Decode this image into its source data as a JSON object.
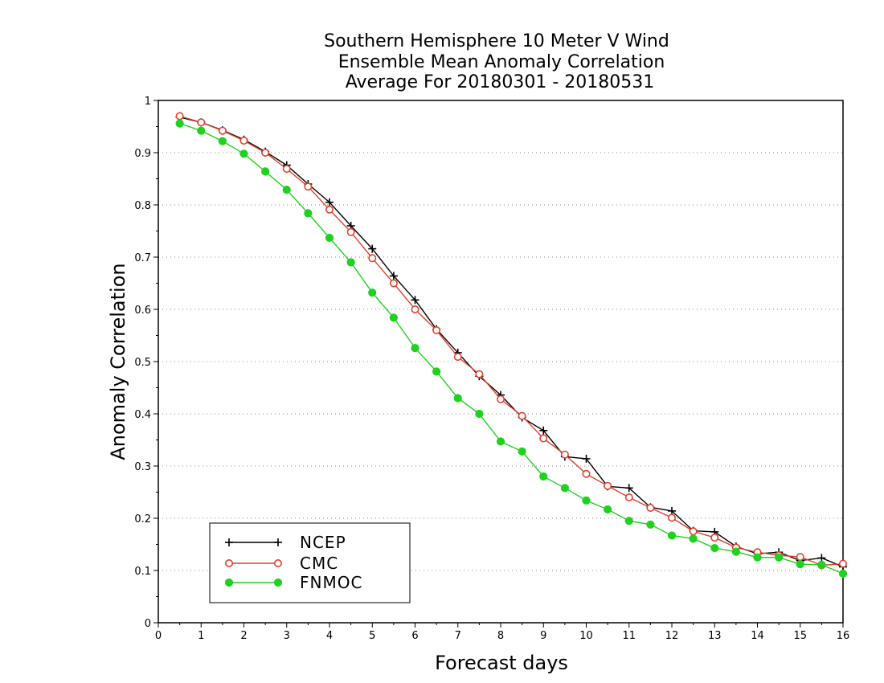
{
  "chart_data": {
    "type": "line",
    "title_lines": [
      "Southern Hemisphere 10 Meter V Wind",
      "Ensemble Mean Anomaly Correlation",
      "Average For 20180301 - 20180531"
    ],
    "xlabel": "Forecast days",
    "ylabel": "Anomaly Correlation",
    "xlim": [
      0,
      16
    ],
    "ylim": [
      0,
      1
    ],
    "x_ticks": [
      0,
      1,
      2,
      3,
      4,
      5,
      6,
      7,
      8,
      9,
      10,
      11,
      12,
      13,
      14,
      15,
      16
    ],
    "y_ticks": [
      0,
      0.1,
      0.2,
      0.3,
      0.4,
      0.5,
      0.6,
      0.7,
      0.8,
      0.9,
      1
    ],
    "y_tick_labels": [
      "0",
      "0.1",
      "0.2",
      "0.3",
      "0.4",
      "0.5",
      "0.6",
      "0.7",
      "0.8",
      "0.9",
      "1"
    ],
    "grid": "horizontal-dotted",
    "legend_position": "bottom-left",
    "x": [
      0.5,
      1,
      1.5,
      2,
      2.5,
      3,
      3.5,
      4,
      4.5,
      5,
      5.5,
      6,
      6.5,
      7,
      7.5,
      8,
      8.5,
      9,
      9.5,
      10,
      10.5,
      11,
      11.5,
      12,
      12.5,
      13,
      13.5,
      14,
      14.5,
      15,
      15.5,
      16
    ],
    "series": [
      {
        "name": "NCEP",
        "color": "#000000",
        "marker": "plus",
        "values": [
          0.968,
          0.958,
          0.943,
          0.925,
          0.902,
          0.876,
          0.84,
          0.805,
          0.76,
          0.716,
          0.664,
          0.618,
          0.562,
          0.517,
          0.472,
          0.436,
          0.393,
          0.368,
          0.318,
          0.314,
          0.261,
          0.258,
          0.221,
          0.214,
          0.176,
          0.174,
          0.146,
          0.132,
          0.135,
          0.119,
          0.124,
          0.107
        ]
      },
      {
        "name": "CMC",
        "color": "#e0402f",
        "marker": "open-circle",
        "values": [
          0.97,
          0.958,
          0.942,
          0.923,
          0.9,
          0.869,
          0.835,
          0.791,
          0.748,
          0.698,
          0.65,
          0.6,
          0.56,
          0.509,
          0.476,
          0.428,
          0.396,
          0.353,
          0.322,
          0.285,
          0.262,
          0.24,
          0.22,
          0.201,
          0.175,
          0.163,
          0.144,
          0.135,
          0.129,
          0.126,
          0.11,
          0.113
        ]
      },
      {
        "name": "FNMOC",
        "color": "#1ed21e",
        "marker": "filled-circle",
        "values": [
          0.956,
          0.942,
          0.922,
          0.898,
          0.864,
          0.829,
          0.784,
          0.737,
          0.69,
          0.632,
          0.584,
          0.526,
          0.481,
          0.43,
          0.4,
          0.347,
          0.328,
          0.28,
          0.258,
          0.234,
          0.217,
          0.195,
          0.188,
          0.167,
          0.161,
          0.143,
          0.136,
          0.125,
          0.125,
          0.112,
          0.111,
          0.094
        ]
      }
    ]
  }
}
